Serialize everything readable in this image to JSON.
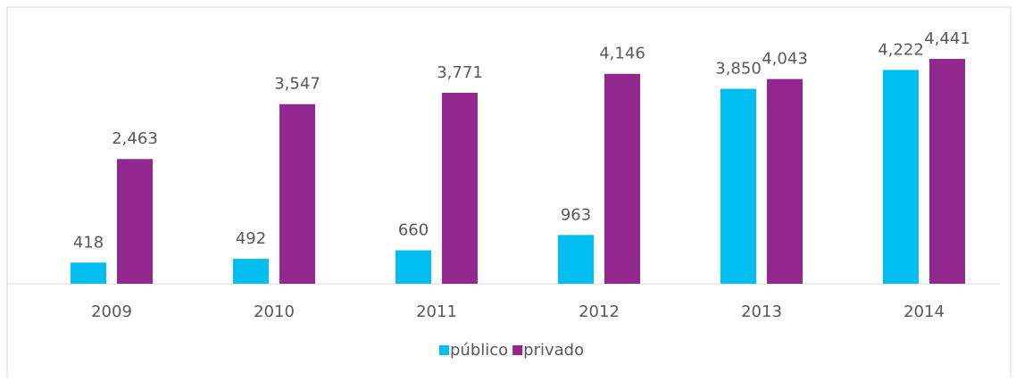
{
  "chart_data": {
    "type": "bar",
    "categories": [
      "2009",
      "2010",
      "2011",
      "2012",
      "2013",
      "2014"
    ],
    "series": [
      {
        "name": "público",
        "color": "#00bff0",
        "values": [
          418,
          492,
          660,
          963,
          3850,
          4222
        ],
        "value_labels": [
          "418",
          "492",
          "660",
          "963",
          "3,850",
          "4,222"
        ]
      },
      {
        "name": "privado",
        "color": "#92278f",
        "values": [
          2463,
          3547,
          3771,
          4146,
          4043,
          4441
        ],
        "value_labels": [
          "2,463",
          "3,547",
          "3,771",
          "4,146",
          "4,043",
          "4,441"
        ]
      }
    ],
    "legend": "bottom"
  }
}
